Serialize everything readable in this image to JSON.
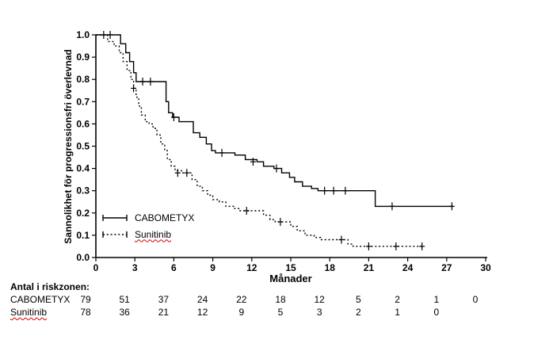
{
  "chart_data": {
    "type": "line",
    "subtype": "kaplan-meier-step",
    "ylabel": "Sannolikhet för progressionsfri överlevnad",
    "xlabel": "Månader",
    "xlim": [
      0,
      30
    ],
    "ylim": [
      0,
      1
    ],
    "xticks": [
      0,
      3,
      6,
      9,
      12,
      15,
      18,
      21,
      24,
      27,
      30
    ],
    "xtick_labels": [
      "0",
      "3",
      "6",
      "9",
      "12",
      "15",
      "18",
      "21",
      "24",
      "27",
      "30"
    ],
    "yticks": [
      0,
      0.1,
      0.2,
      0.3,
      0.4,
      0.5,
      0.6,
      0.7,
      0.8,
      0.9,
      1.0
    ],
    "ytick_labels": [
      "0.0",
      "0.1",
      "0.2",
      "0.3",
      "0.4",
      "0.5",
      "0.6",
      "0.7",
      "0.8",
      "0.9",
      "1.0"
    ],
    "grid": false,
    "line_color": "#000000",
    "legend_position": "inside-bottom-left",
    "series": [
      {
        "name": "CABOMETYX",
        "style": "solid",
        "steps": [
          [
            0,
            1.0
          ],
          [
            1.9,
            0.96
          ],
          [
            2.3,
            0.92
          ],
          [
            2.6,
            0.88
          ],
          [
            2.9,
            0.83
          ],
          [
            3.1,
            0.79
          ],
          [
            5.4,
            0.7
          ],
          [
            5.6,
            0.65
          ],
          [
            5.9,
            0.63
          ],
          [
            6.4,
            0.61
          ],
          [
            7.5,
            0.56
          ],
          [
            8.0,
            0.54
          ],
          [
            8.5,
            0.51
          ],
          [
            8.9,
            0.48
          ],
          [
            9.2,
            0.47
          ],
          [
            10.7,
            0.46
          ],
          [
            11.5,
            0.44
          ],
          [
            12.4,
            0.43
          ],
          [
            12.9,
            0.41
          ],
          [
            13.7,
            0.4
          ],
          [
            14.3,
            0.38
          ],
          [
            14.9,
            0.36
          ],
          [
            15.3,
            0.34
          ],
          [
            15.9,
            0.32
          ],
          [
            16.6,
            0.31
          ],
          [
            17.1,
            0.3
          ],
          [
            21.5,
            0.23
          ],
          [
            27.5,
            0.23
          ]
        ],
        "censors": [
          [
            0.6,
            1.0
          ],
          [
            1.1,
            1.0
          ],
          [
            3.6,
            0.79
          ],
          [
            4.2,
            0.79
          ],
          [
            6.0,
            0.63
          ],
          [
            9.7,
            0.47
          ],
          [
            12.1,
            0.43
          ],
          [
            13.9,
            0.4
          ],
          [
            17.6,
            0.3
          ],
          [
            18.3,
            0.3
          ],
          [
            19.2,
            0.3
          ],
          [
            22.8,
            0.23
          ],
          [
            27.4,
            0.23
          ]
        ]
      },
      {
        "name": "Sunitinib",
        "style": "dotted",
        "steps": [
          [
            0,
            1.0
          ],
          [
            0.9,
            0.97
          ],
          [
            1.4,
            0.95
          ],
          [
            1.8,
            0.92
          ],
          [
            2.1,
            0.88
          ],
          [
            2.4,
            0.84
          ],
          [
            2.7,
            0.8
          ],
          [
            2.9,
            0.76
          ],
          [
            3.1,
            0.72
          ],
          [
            3.3,
            0.68
          ],
          [
            3.5,
            0.64
          ],
          [
            3.8,
            0.61
          ],
          [
            4.1,
            0.6
          ],
          [
            4.4,
            0.58
          ],
          [
            4.7,
            0.55
          ],
          [
            5.0,
            0.51
          ],
          [
            5.3,
            0.48
          ],
          [
            5.5,
            0.44
          ],
          [
            5.8,
            0.41
          ],
          [
            6.1,
            0.39
          ],
          [
            6.6,
            0.38
          ],
          [
            7.4,
            0.35
          ],
          [
            7.8,
            0.32
          ],
          [
            8.2,
            0.3
          ],
          [
            8.6,
            0.28
          ],
          [
            9.0,
            0.26
          ],
          [
            9.5,
            0.25
          ],
          [
            10.0,
            0.23
          ],
          [
            10.6,
            0.22
          ],
          [
            11.0,
            0.21
          ],
          [
            12.9,
            0.19
          ],
          [
            13.4,
            0.17
          ],
          [
            13.8,
            0.16
          ],
          [
            15.0,
            0.14
          ],
          [
            15.5,
            0.12
          ],
          [
            16.1,
            0.1
          ],
          [
            16.8,
            0.09
          ],
          [
            17.3,
            0.08
          ],
          [
            19.4,
            0.06
          ],
          [
            19.8,
            0.05
          ],
          [
            25.2,
            0.05
          ]
        ],
        "censors": [
          [
            2.9,
            0.76
          ],
          [
            6.3,
            0.38
          ],
          [
            7.0,
            0.38
          ],
          [
            11.6,
            0.21
          ],
          [
            14.2,
            0.16
          ],
          [
            18.9,
            0.08
          ],
          [
            21.0,
            0.05
          ],
          [
            23.1,
            0.05
          ],
          [
            25.1,
            0.05
          ]
        ]
      }
    ],
    "risk_table": {
      "title": "Antal i riskzonen:",
      "times": [
        0,
        3,
        6,
        9,
        12,
        15,
        18,
        21,
        24,
        27,
        30
      ],
      "rows": [
        {
          "name": "CABOMETYX",
          "counts": [
            "79",
            "51",
            "37",
            "24",
            "22",
            "18",
            "12",
            "5",
            "2",
            "1",
            "0"
          ]
        },
        {
          "name": "Sunitinib",
          "counts": [
            "78",
            "36",
            "21",
            "12",
            "9",
            "5",
            "3",
            "2",
            "1",
            "0",
            ""
          ]
        }
      ]
    }
  }
}
